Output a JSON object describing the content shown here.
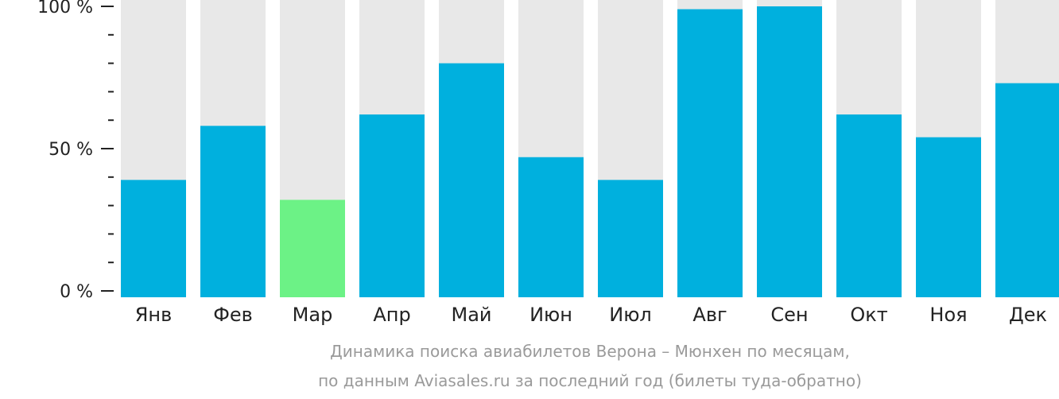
{
  "chart_data": {
    "type": "bar",
    "categories": [
      "Янв",
      "Фев",
      "Мар",
      "Апр",
      "Май",
      "Июн",
      "Июл",
      "Авг",
      "Сен",
      "Окт",
      "Ноя",
      "Дек"
    ],
    "values": [
      39,
      58,
      32,
      62,
      80,
      47,
      39,
      99,
      100,
      62,
      54,
      73
    ],
    "ylim": [
      0,
      100
    ],
    "yticks": [
      "0 %",
      "50 %",
      "100 %"
    ],
    "highlight_index": 2,
    "colors": {
      "bar": "#00b0de",
      "highlight": "#6cf286",
      "track": "#e8e8e8",
      "axis": "#222222"
    }
  },
  "caption": {
    "line1": "Динамика поиска авиабилетов Верона – Мюнхен по месяцам,",
    "line2": "по данным Aviasales.ru за последний год (билеты туда-обратно)"
  }
}
